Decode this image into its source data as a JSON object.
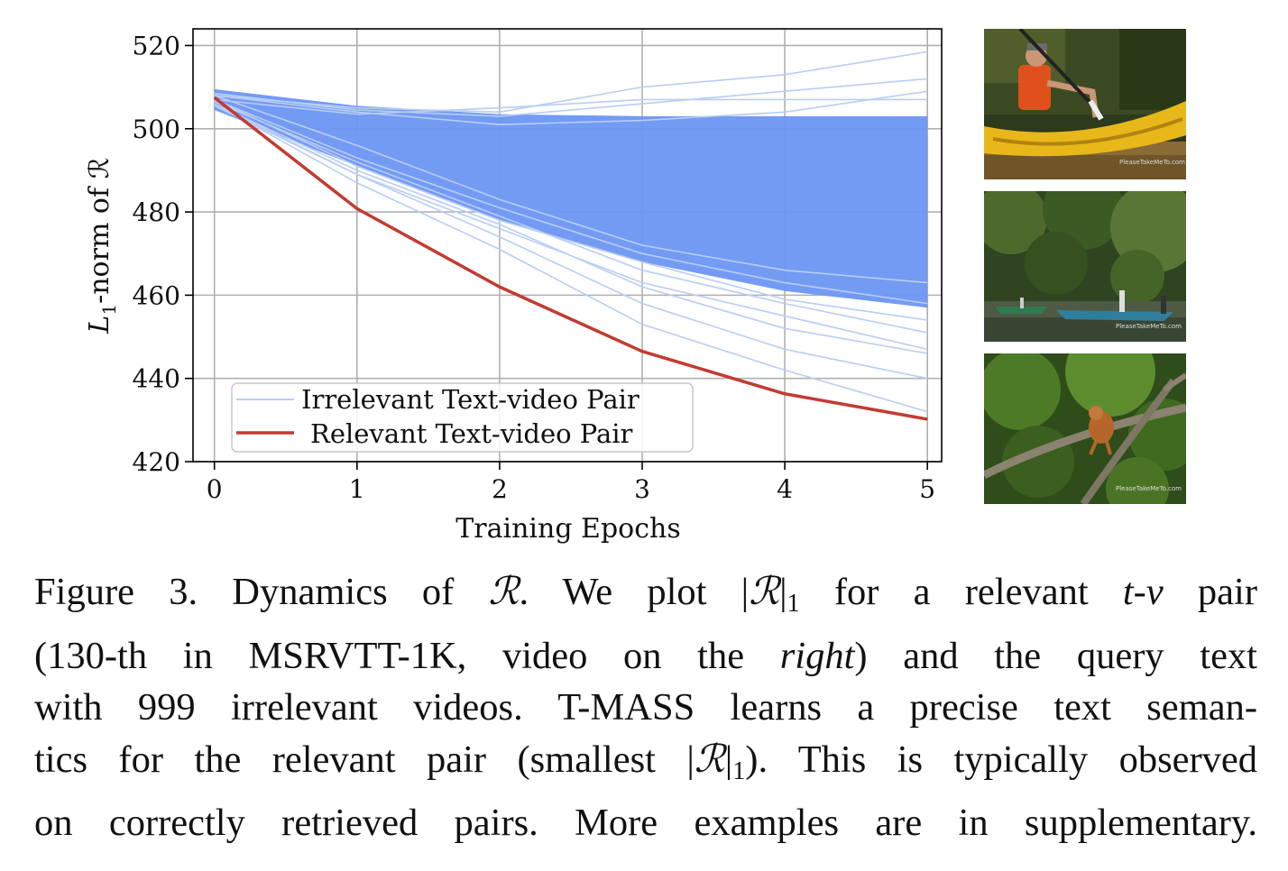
{
  "chart_data": {
    "type": "line",
    "xlabel": "Training Epochs",
    "ylabel_main": "L",
    "ylabel_sub": "1",
    "ylabel_rest": "-norm of ℛ",
    "x": [
      0,
      1,
      2,
      3,
      4,
      5
    ],
    "xticks": [
      "0",
      "1",
      "2",
      "3",
      "4",
      "5"
    ],
    "yticks": [
      "420",
      "440",
      "460",
      "480",
      "500",
      "520"
    ],
    "xlim": [
      -0.15,
      5.1
    ],
    "ylim": [
      420,
      524
    ],
    "grid": true,
    "legend_position": "lower-left",
    "series": [
      {
        "name": "Irrelevant Text-video Pair",
        "color": "#6b96f2",
        "line_color": "#b9cdf4",
        "count": 999,
        "band_upper": [
          509.5,
          505.5,
          503.5,
          503,
          503,
          503
        ],
        "band_lower": [
          504.5,
          491,
          478,
          468,
          461,
          457
        ],
        "sample_lines": [
          [
            508,
            505,
            504,
            510,
            513,
            518.5
          ],
          [
            508.5,
            504.5,
            503,
            506,
            509,
            512
          ],
          [
            508,
            504,
            501,
            502,
            504,
            509
          ],
          [
            507,
            503.5,
            505,
            507,
            507,
            507
          ],
          [
            508,
            496,
            483,
            472,
            466,
            463
          ],
          [
            507,
            493,
            481,
            470,
            463,
            458
          ],
          [
            506.5,
            492,
            479,
            466,
            458,
            451
          ],
          [
            506,
            490,
            477,
            462,
            452,
            446
          ],
          [
            505.5,
            489,
            474,
            458,
            447,
            440
          ],
          [
            506,
            487,
            471,
            453,
            442,
            432
          ],
          [
            507,
            491,
            478,
            468,
            459,
            454
          ],
          [
            506,
            489,
            476,
            463,
            455,
            447
          ]
        ]
      },
      {
        "name": "Relevant Text-video Pair",
        "color": "#c23b32",
        "values": [
          507.5,
          480.8,
          462,
          446.5,
          436.3,
          430.2
        ]
      }
    ]
  },
  "thumbnails": [
    {
      "label": "kayak-frame",
      "watermark": "PleaseTakeMeTo.com"
    },
    {
      "label": "river-boats-frame",
      "watermark": "PleaseTakeMeTo.com"
    },
    {
      "label": "proboscis-monkey-frame",
      "watermark": "PleaseTakeMeTo.com"
    }
  ],
  "caption": {
    "l1a": "Figure 3.  Dynamics of ",
    "R": "ℛ",
    "l1b": ".  We plot |",
    "l1c": "|",
    "sub1": "1",
    "l1d": " for a relevant ",
    "tv": "t-v",
    "l1e": " pair",
    "l2a": "(130-th in MSRVTT-1K, video on the ",
    "right": "right",
    "l2b": ") and the query text",
    "l3": "with 999 irrelevant videos.  T-MASS learns a precise text seman-",
    "l4a": "tics for the relevant pair (smallest |",
    "l4b": "|",
    "l4c": ").  This is typically observed",
    "l5": "on correctly retrieved pairs.  More examples are in supplementary."
  }
}
